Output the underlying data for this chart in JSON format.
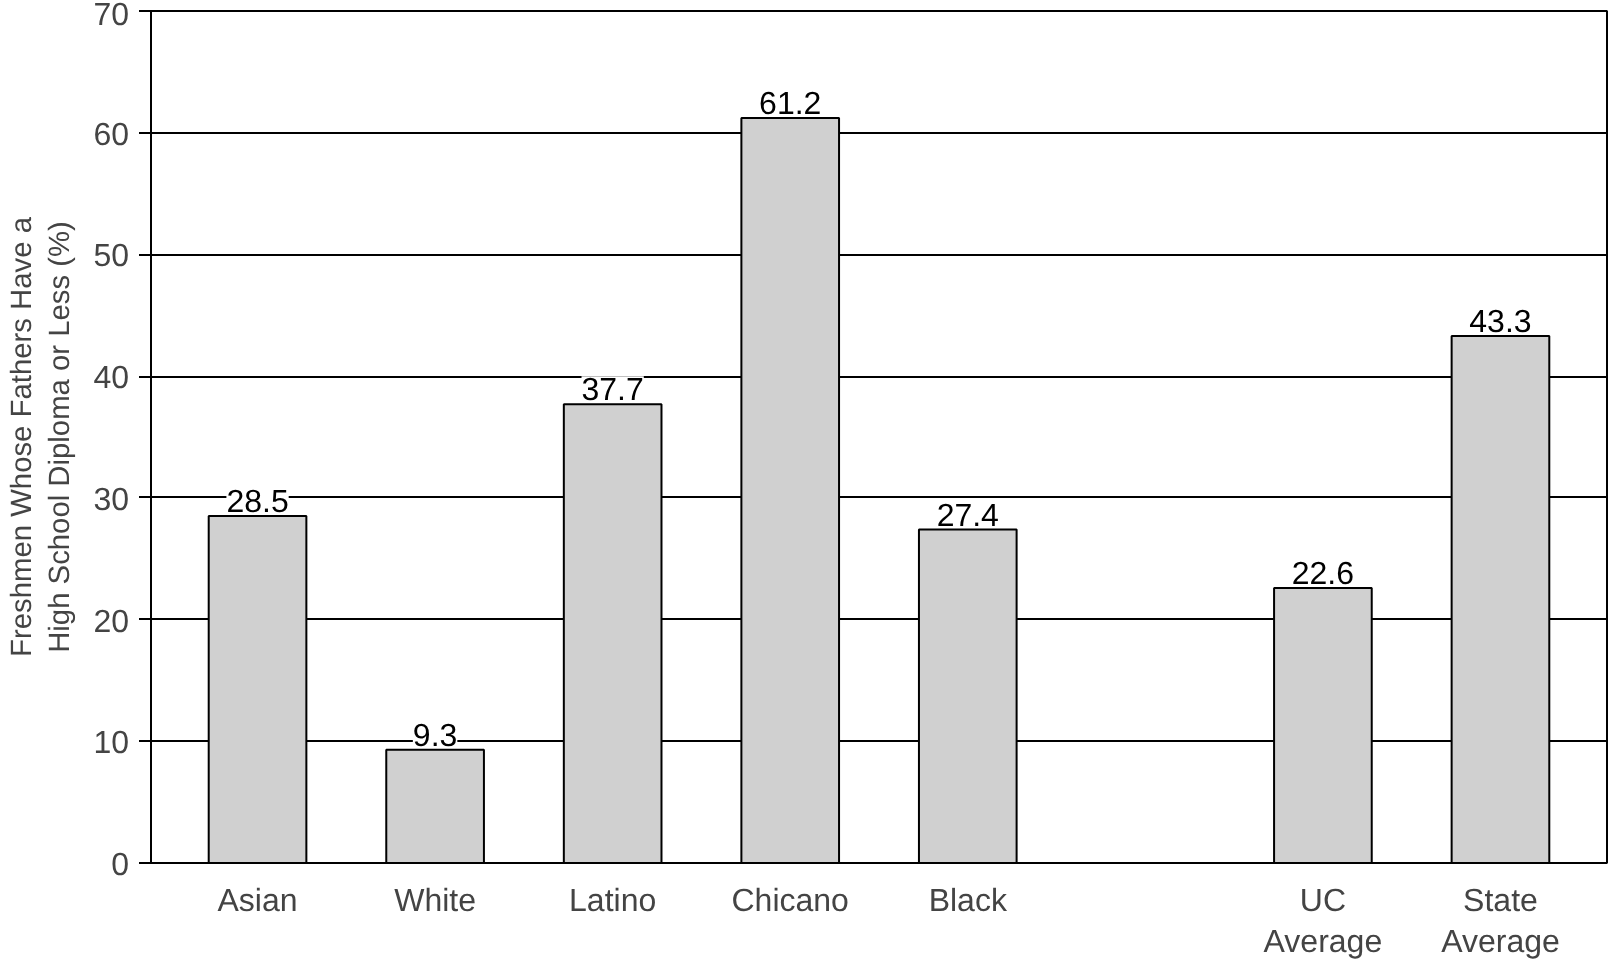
{
  "chart_data": {
    "type": "bar",
    "ylabel": "Freshmen Whose Fathers Have a\nHigh School Diploma or Less (%)",
    "categories": [
      "Asian",
      "White",
      "Latino",
      "Chicano",
      "Black",
      null,
      "UC Average",
      "State Average"
    ],
    "values": [
      28.5,
      9.3,
      37.7,
      61.2,
      27.4,
      null,
      22.6,
      43.3
    ],
    "color": "#d0d0d0",
    "ylim": [
      0,
      70
    ],
    "yticks": [
      0,
      10,
      20,
      30,
      40,
      50,
      60,
      70
    ],
    "grid": "y",
    "data_labels": true
  }
}
